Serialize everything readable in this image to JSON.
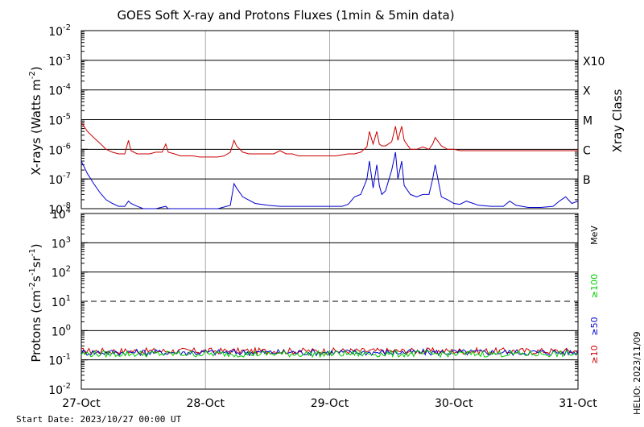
{
  "chart_data": [
    {
      "type": "line",
      "title": "GOES Soft X-ray and Protons Fluxes   (1min & 5min data)",
      "xlabel": "",
      "ylabel": "X-rays (Watts m^-2)",
      "ylabel_parts": [
        "X-rays (Watts m",
        "-2",
        ")"
      ],
      "y_scale": "log",
      "ylim": [
        1e-08,
        0.01
      ],
      "yticks": [
        {
          "value": 1e-08,
          "base": "10",
          "exp": "-8"
        },
        {
          "value": 1e-07,
          "base": "10",
          "exp": "-7"
        },
        {
          "value": 1e-06,
          "base": "10",
          "exp": "-6"
        },
        {
          "value": 1e-05,
          "base": "10",
          "exp": "-5"
        },
        {
          "value": 0.0001,
          "base": "10",
          "exp": "-4"
        },
        {
          "value": 0.001,
          "base": "10",
          "exp": "-3"
        },
        {
          "value": 0.01,
          "base": "10",
          "exp": "-2"
        }
      ],
      "grid": true,
      "xlim": [
        "2023-10-27",
        "2023-10-31"
      ],
      "xticks": [
        "27-Oct",
        "28-Oct",
        "29-Oct",
        "30-Oct",
        "31-Oct"
      ],
      "right_axis_label": "Xray Class",
      "flare_classes": [
        {
          "label": "X10",
          "value": 0.001
        },
        {
          "label": "X",
          "value": 0.0001
        },
        {
          "label": "M",
          "value": 1e-05
        },
        {
          "label": "C",
          "value": 1e-06
        },
        {
          "label": "B",
          "value": 1e-07
        }
      ],
      "x_units": "days since 2023-10-27 00:00 UT",
      "series": [
        {
          "color": "#cc0000",
          "x": [
            0.0,
            0.05,
            0.1,
            0.15,
            0.2,
            0.25,
            0.3,
            0.35,
            0.38,
            0.4,
            0.45,
            0.5,
            0.55,
            0.6,
            0.65,
            0.68,
            0.7,
            0.75,
            0.8,
            0.85,
            0.9,
            0.95,
            1.0,
            1.05,
            1.1,
            1.15,
            1.2,
            1.23,
            1.25,
            1.3,
            1.35,
            1.4,
            1.45,
            1.5,
            1.55,
            1.6,
            1.65,
            1.7,
            1.75,
            1.8,
            1.85,
            1.9,
            1.95,
            2.0,
            2.05,
            2.1,
            2.15,
            2.2,
            2.25,
            2.3,
            2.32,
            2.35,
            2.38,
            2.4,
            2.42,
            2.45,
            2.5,
            2.53,
            2.55,
            2.58,
            2.6,
            2.65,
            2.7,
            2.75,
            2.8,
            2.83,
            2.85,
            2.9,
            2.95,
            3.0,
            3.05,
            3.1,
            3.15,
            3.2,
            3.25,
            3.3,
            3.35,
            3.4,
            3.45,
            3.5,
            3.55,
            3.6,
            3.65,
            3.7,
            3.75,
            3.8,
            3.85,
            3.9,
            3.95,
            4.0
          ],
          "values": [
            8e-06,
            4e-06,
            2.5e-06,
            1.6e-06,
            1e-06,
            8e-07,
            7e-07,
            7e-07,
            2e-06,
            9e-07,
            7e-07,
            7e-07,
            7e-07,
            8e-07,
            8e-07,
            1.5e-06,
            8e-07,
            7e-07,
            6e-07,
            6e-07,
            6e-07,
            5.5e-07,
            5.5e-07,
            5.5e-07,
            5.5e-07,
            6e-07,
            8e-07,
            2e-06,
            1.3e-06,
            8e-07,
            7e-07,
            7e-07,
            7e-07,
            7e-07,
            7e-07,
            9e-07,
            7e-07,
            7e-07,
            6e-07,
            6e-07,
            6e-07,
            6e-07,
            6e-07,
            6e-07,
            6e-07,
            6.5e-07,
            7e-07,
            7e-07,
            8e-07,
            1.2e-06,
            4e-06,
            1.5e-06,
            4e-06,
            1.5e-06,
            1.3e-06,
            1.3e-06,
            1.8e-06,
            6e-06,
            2e-06,
            6e-06,
            2e-06,
            1e-06,
            1e-06,
            1.2e-06,
            1e-06,
            1.5e-06,
            2.5e-06,
            1.3e-06,
            1e-06,
            1e-06,
            9e-07,
            9e-07,
            9e-07,
            9e-07,
            9e-07,
            9e-07,
            9e-07,
            9e-07,
            9e-07,
            9e-07,
            9e-07,
            9e-07,
            9e-07,
            9e-07,
            9e-07,
            9e-07,
            9e-07,
            9e-07,
            9e-07,
            9e-07
          ]
        },
        {
          "color": "#0000cc",
          "x": [
            0.0,
            0.05,
            0.1,
            0.15,
            0.2,
            0.25,
            0.3,
            0.35,
            0.38,
            0.4,
            0.45,
            0.5,
            0.55,
            0.6,
            0.68,
            0.7,
            0.8,
            0.9,
            1.0,
            1.1,
            1.2,
            1.23,
            1.25,
            1.3,
            1.4,
            1.5,
            1.6,
            1.7,
            1.8,
            1.9,
            2.0,
            2.1,
            2.15,
            2.2,
            2.25,
            2.3,
            2.32,
            2.35,
            2.38,
            2.4,
            2.42,
            2.45,
            2.5,
            2.53,
            2.55,
            2.58,
            2.6,
            2.65,
            2.7,
            2.75,
            2.8,
            2.83,
            2.85,
            2.9,
            2.95,
            3.0,
            3.05,
            3.1,
            3.2,
            3.3,
            3.4,
            3.45,
            3.5,
            3.55,
            3.6,
            3.7,
            3.8,
            3.85,
            3.9,
            3.95,
            4.0
          ],
          "values": [
            4e-07,
            1.5e-07,
            7e-08,
            3.5e-08,
            2e-08,
            1.5e-08,
            1.2e-08,
            1.2e-08,
            1.8e-08,
            1.5e-08,
            1.2e-08,
            1e-08,
            1e-08,
            1e-08,
            1.2e-08,
            1e-08,
            1e-08,
            1e-08,
            1e-08,
            1e-08,
            1.3e-08,
            7e-08,
            5e-08,
            2.5e-08,
            1.5e-08,
            1.3e-08,
            1.2e-08,
            1.2e-08,
            1.2e-08,
            1.2e-08,
            1.2e-08,
            1.2e-08,
            1.4e-08,
            2.5e-08,
            3e-08,
            1e-07,
            4e-07,
            5e-08,
            3e-07,
            6e-08,
            3e-08,
            4e-08,
            2e-07,
            8e-07,
            1e-07,
            4e-07,
            6e-08,
            3e-08,
            2.5e-08,
            3e-08,
            3e-08,
            1e-07,
            3e-07,
            2.5e-08,
            2e-08,
            1.5e-08,
            1.4e-08,
            1.8e-08,
            1.3e-08,
            1.2e-08,
            1.2e-08,
            1.8e-08,
            1.3e-08,
            1.2e-08,
            1.1e-08,
            1.1e-08,
            1.2e-08,
            1.8e-08,
            2.5e-08,
            1.5e-08,
            1.8e-08
          ]
        }
      ]
    },
    {
      "type": "line",
      "title": "",
      "xlabel": "",
      "ylabel": "Protons (cm^-2 s^-1 sr^-1)",
      "ylabel_parts": [
        "Protons (cm",
        "-2",
        "s",
        "-1",
        "sr",
        "-1",
        ")"
      ],
      "y_scale": "log",
      "ylim": [
        0.01,
        10000
      ],
      "yticks": [
        {
          "value": 0.01,
          "base": "10",
          "exp": "-2"
        },
        {
          "value": 0.1,
          "base": "10",
          "exp": "-1"
        },
        {
          "value": 1,
          "base": "10",
          "exp": "0"
        },
        {
          "value": 10,
          "base": "10",
          "exp": "1"
        },
        {
          "value": 100,
          "base": "10",
          "exp": "2"
        },
        {
          "value": 1000,
          "base": "10",
          "exp": "3"
        },
        {
          "value": 10000,
          "base": "10",
          "exp": "4"
        }
      ],
      "grid": true,
      "threshold": 10,
      "xlim": [
        "2023-10-27",
        "2023-10-31"
      ],
      "xticks": [
        "27-Oct",
        "28-Oct",
        "29-Oct",
        "30-Oct",
        "31-Oct"
      ],
      "unit_label": "MeV",
      "series": [
        {
          "name": "≥10",
          "color": "#cc0000",
          "level": 0.2
        },
        {
          "name": "≥50",
          "color": "#0000cc",
          "level": 0.18
        },
        {
          "name": "≥100",
          "color": "#00cc00",
          "level": 0.16
        }
      ]
    }
  ],
  "footer": {
    "start_date": "Start Date: 2023/10/27 00:00 UT",
    "credit": "HELIO: 2023/11/09"
  }
}
